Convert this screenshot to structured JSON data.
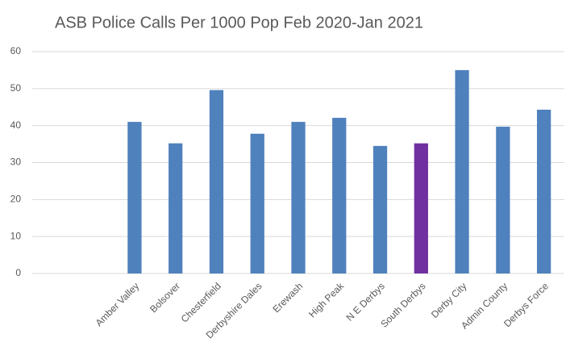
{
  "chart_data": {
    "type": "bar",
    "title": "ASB Police Calls Per 1000 Pop Feb 2020-Jan 2021",
    "categories": [
      null,
      null,
      "Amber Valley",
      "Bolsover",
      "Chesterfield",
      "Derbyshire Dales",
      "Erewash",
      "High Peak",
      "N E Derbys",
      "South Derbys",
      "Derby City",
      "Admin County",
      "Derbys Force"
    ],
    "values": [
      null,
      null,
      41.0,
      35.2,
      49.6,
      37.8,
      41.0,
      42.1,
      34.5,
      35.2,
      55.0,
      39.7,
      44.3
    ],
    "colors": [
      "#4f81bd",
      "#4f81bd",
      "#4f81bd",
      "#4f81bd",
      "#4f81bd",
      "#4f81bd",
      "#4f81bd",
      "#4f81bd",
      "#4f81bd",
      "#7030a0",
      "#4f81bd",
      "#4f81bd",
      "#4f81bd"
    ],
    "ylim": [
      0,
      60
    ],
    "yticks": [
      0,
      10,
      20,
      30,
      40,
      50,
      60
    ],
    "grid": true
  }
}
